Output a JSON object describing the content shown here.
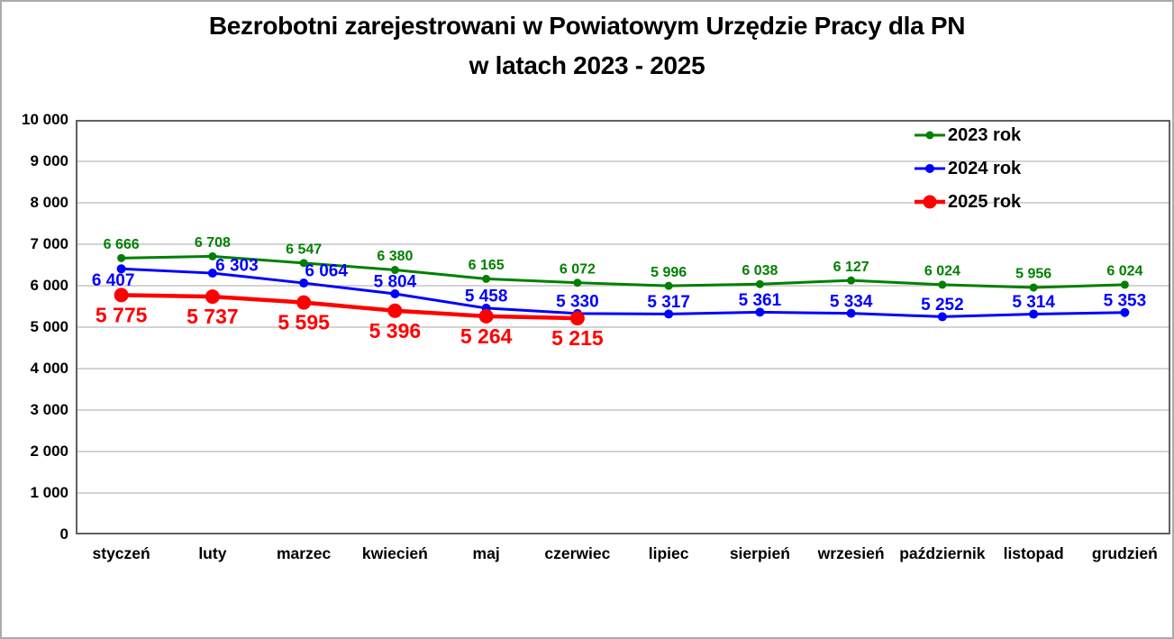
{
  "chart_data": {
    "type": "line",
    "title_line1": "Bezrobotni zarejestrowani w Powiatowym Urzędzie Pracy dla PN",
    "title_line2": "w latach 2023 - 2025",
    "categories": [
      "styczeń",
      "luty",
      "marzec",
      "kwiecień",
      "maj",
      "czerwiec",
      "lipiec",
      "sierpień",
      "wrzesień",
      "październik",
      "listopad",
      "grudzień"
    ],
    "series": [
      {
        "name": "2023 rok",
        "color": "#008000",
        "line_width": 3,
        "marker_radius": 4.5,
        "label_font_size": 16,
        "label_dy": -16,
        "label_offsets": {},
        "values": [
          6666,
          6708,
          6547,
          6380,
          6165,
          6072,
          5996,
          6038,
          6127,
          6024,
          5956,
          6024
        ]
      },
      {
        "name": "2024 rok",
        "color": "#0000ff",
        "line_width": 3,
        "marker_radius": 5,
        "label_font_size": 19,
        "label_dy": -14,
        "label_offsets": {
          "0": {
            "dx": -9,
            "dy": 12
          },
          "1": {
            "dx": 27,
            "dy": -9
          },
          "2": {
            "dx": 25
          }
        },
        "values": [
          6407,
          6303,
          6064,
          5804,
          5458,
          5330,
          5317,
          5361,
          5334,
          5252,
          5314,
          5353
        ]
      },
      {
        "name": "2025 rok",
        "color": "#ff0000",
        "line_width": 4.5,
        "marker_radius": 8,
        "label_font_size": 23,
        "label_dy": 22,
        "label_offsets": {},
        "values": [
          5775,
          5737,
          5595,
          5396,
          5264,
          5215
        ]
      }
    ],
    "ylim": [
      0,
      10000
    ],
    "ytick_step": 1000,
    "ytick_labels": [
      "0",
      "1 000",
      "2 000",
      "3 000",
      "4 000",
      "5 000",
      "6 000",
      "7 000",
      "8 000",
      "9 000",
      "10 000"
    ],
    "grid": true,
    "legend_position": "upper-right",
    "legend_entries": [
      "2023 rok",
      "2024 rok",
      "2025 rok"
    ]
  },
  "colors": {
    "grid": "#c6c6c6",
    "plot_border": "#606060",
    "axis_text": "#000000",
    "background": "#ffffff",
    "frame_border": "#ababab"
  }
}
